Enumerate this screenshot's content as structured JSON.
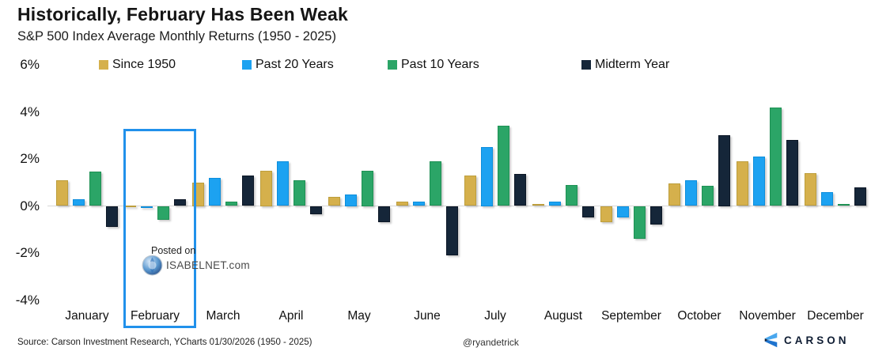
{
  "header": {
    "title": "Historically, February Has Been Weak",
    "subtitle": "S&P 500 Index Average Monthly Returns (1950 - 2025)"
  },
  "legend": {
    "items": [
      {
        "label": "Since 1950",
        "color": "#D5B04C"
      },
      {
        "label": "Past 20 Years",
        "color": "#1CA2F1"
      },
      {
        "label": "Past 10 Years",
        "color": "#2BA567"
      },
      {
        "label": "Midterm Year",
        "color": "#152639"
      }
    ]
  },
  "chart_data": {
    "type": "bar",
    "title": "Historically, February Has Been Weak",
    "subtitle": "S&P 500 Index Average Monthly Returns (1950 - 2025)",
    "unit": "%",
    "categories": [
      "January",
      "February",
      "March",
      "April",
      "May",
      "June",
      "July",
      "August",
      "September",
      "October",
      "November",
      "December"
    ],
    "series": [
      {
        "name": "Since 1950",
        "color": "#D5B04C",
        "border": "#BD9E3C",
        "values": [
          1.1,
          0.0,
          1.0,
          1.5,
          0.4,
          0.2,
          1.3,
          0.1,
          -0.7,
          0.95,
          1.9,
          1.4
        ]
      },
      {
        "name": "Past 20 Years",
        "color": "#1CA2F1",
        "border": "#0D8EDC",
        "values": [
          0.3,
          -0.1,
          1.2,
          1.9,
          0.5,
          0.2,
          2.5,
          0.2,
          -0.5,
          1.1,
          2.1,
          0.6
        ]
      },
      {
        "name": "Past 10 Years",
        "color": "#2BA567",
        "border": "#1E9154",
        "values": [
          1.45,
          -0.6,
          0.2,
          1.1,
          1.5,
          1.9,
          3.4,
          0.9,
          -1.4,
          0.85,
          4.2,
          0.1
        ]
      },
      {
        "name": "Midterm Year",
        "color": "#152639",
        "border": "#0C1726",
        "values": [
          -0.9,
          0.3,
          1.3,
          -0.35,
          -0.7,
          -2.1,
          1.35,
          -0.5,
          -0.8,
          3.0,
          2.8,
          0.8
        ]
      }
    ],
    "y_ticks": [
      "6%",
      "4%",
      "2%",
      "0%",
      "-2%",
      "-4%"
    ],
    "ylim": [
      -4,
      6
    ],
    "grid": "zero-line-only",
    "legend_position": "top",
    "highlighted_category": "February",
    "highlight_color": "#2191EB"
  },
  "watermark": {
    "posted_on": "Posted on",
    "site": "ISABELNET.com"
  },
  "footer": {
    "source": "Source: Carson Investment Research, YCharts 01/30/2026 (1950 - 2025)",
    "handle": "@ryandetrick",
    "brand": "CARSON"
  }
}
